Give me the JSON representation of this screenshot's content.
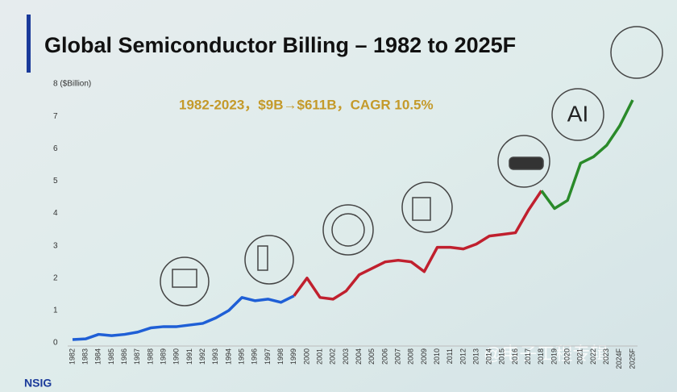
{
  "chart_data": {
    "type": "line",
    "title": "Global Semiconductor Billing – 1982 to 2025F",
    "annotations": [
      "1982-2023，$9B→$611B，CAGR 10.5%",
      "AI"
    ],
    "logo": "NSIG",
    "watermark": "@电子工程专辑",
    "categories": [
      "1982",
      "1983",
      "1984",
      "1985",
      "1986",
      "1987",
      "1988",
      "1989",
      "1990",
      "1991",
      "1992",
      "1993",
      "1994",
      "1995",
      "1996",
      "1997",
      "1998",
      "1999",
      "2000",
      "2001",
      "2002",
      "2003",
      "2004",
      "2005",
      "2006",
      "2007",
      "2008",
      "2009",
      "2010",
      "2011",
      "2012",
      "2013",
      "2014",
      "2015",
      "2016",
      "2017",
      "2018",
      "2019",
      "2020",
      "2021",
      "2022",
      "2023",
      "2024F",
      "2025F"
    ],
    "series": [
      {
        "color": "#1f5fd6",
        "values": [
          0.1,
          0.12,
          0.26,
          0.22,
          0.26,
          0.33,
          0.46,
          0.5,
          0.5,
          0.55,
          0.6,
          0.77,
          1.0,
          1.4,
          1.3,
          1.35,
          1.25,
          1.45,
          null,
          null,
          null,
          null,
          null,
          null,
          null,
          null,
          null,
          null,
          null,
          null,
          null,
          null,
          null,
          null,
          null,
          null,
          null,
          null,
          null,
          null,
          null,
          null,
          null,
          null
        ]
      },
      {
        "color": "#c0202e",
        "values": [
          null,
          null,
          null,
          null,
          null,
          null,
          null,
          null,
          null,
          null,
          null,
          null,
          null,
          null,
          null,
          null,
          null,
          1.45,
          2.0,
          1.4,
          1.35,
          1.6,
          2.1,
          2.3,
          2.5,
          2.55,
          2.5,
          2.2,
          2.95,
          2.95,
          2.9,
          3.05,
          3.3,
          3.35,
          3.4,
          4.1,
          4.7,
          null,
          null,
          null,
          null,
          null,
          null,
          null
        ]
      },
      {
        "color": "#2a8a2a",
        "values": [
          null,
          null,
          null,
          null,
          null,
          null,
          null,
          null,
          null,
          null,
          null,
          null,
          null,
          null,
          null,
          null,
          null,
          null,
          null,
          null,
          null,
          null,
          null,
          null,
          null,
          null,
          null,
          null,
          null,
          null,
          null,
          null,
          null,
          null,
          null,
          null,
          4.7,
          4.15,
          4.4,
          5.55,
          5.75,
          6.1,
          6.7,
          7.5
        ]
      }
    ],
    "ylim": [
      0,
      8
    ],
    "yticks": [
      0,
      1,
      2,
      3,
      4,
      5,
      6,
      7,
      {
        "value": 8,
        "label": "8 ($Billion)"
      }
    ],
    "grid": false
  }
}
